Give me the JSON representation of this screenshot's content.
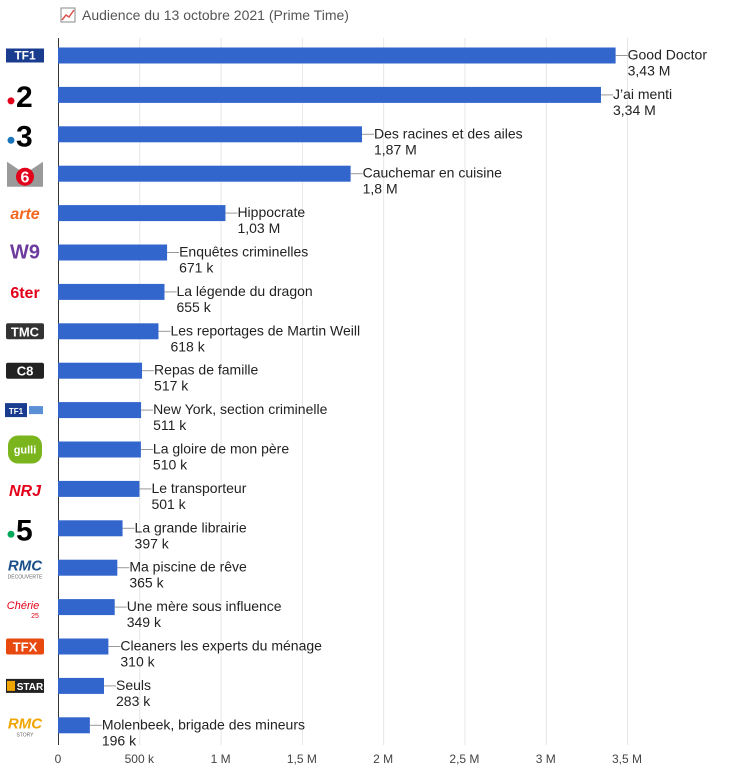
{
  "chart_data": {
    "type": "bar",
    "orientation": "horizontal",
    "title": "Audience du 13 octobre 2021 (Prime Time)",
    "xlim": [
      0,
      3700000
    ],
    "ticks": [
      0,
      500000,
      1000000,
      1500000,
      2000000,
      2500000,
      3000000,
      3500000
    ],
    "tick_labels": [
      "0",
      "500 k",
      "1 M",
      "1,5 M",
      "2 M",
      "2,5 M",
      "3 M",
      "3,5 M"
    ],
    "grid": true,
    "bar_color": "#3366cc",
    "bars": [
      {
        "channel": "TF1",
        "program": "Good Doctor",
        "value": 3430000,
        "label": "3,43 M"
      },
      {
        "channel": "France 2",
        "program": "J’ai menti",
        "value": 3340000,
        "label": "3,34 M"
      },
      {
        "channel": "France 3",
        "program": "Des racines et des ailes",
        "value": 1870000,
        "label": "1,87 M"
      },
      {
        "channel": "M6",
        "program": "Cauchemar en cuisine",
        "value": 1800000,
        "label": "1,8 M"
      },
      {
        "channel": "Arte",
        "program": "Hippocrate",
        "value": 1030000,
        "label": "1,03 M"
      },
      {
        "channel": "W9",
        "program": "Enquêtes criminelles",
        "value": 671000,
        "label": "671 k"
      },
      {
        "channel": "6ter",
        "program": "La légende du dragon",
        "value": 655000,
        "label": "655 k"
      },
      {
        "channel": "TMC",
        "program": "Les reportages de Martin Weill",
        "value": 618000,
        "label": "618 k"
      },
      {
        "channel": "C8",
        "program": "Repas de famille",
        "value": 517000,
        "label": "517 k"
      },
      {
        "channel": "TF1 Séries Films",
        "program": "New York, section criminelle",
        "value": 511000,
        "label": "511 k"
      },
      {
        "channel": "Gulli",
        "program": "La gloire de mon père",
        "value": 510000,
        "label": "510 k"
      },
      {
        "channel": "NRJ 12",
        "program": "Le transporteur",
        "value": 501000,
        "label": "501 k"
      },
      {
        "channel": "France 5",
        "program": "La grande librairie",
        "value": 397000,
        "label": "397 k"
      },
      {
        "channel": "RMC Découverte",
        "program": "Ma piscine de rêve",
        "value": 365000,
        "label": "365 k"
      },
      {
        "channel": "Chérie 25",
        "program": "Une mère sous influence",
        "value": 349000,
        "label": "349 k"
      },
      {
        "channel": "TFX",
        "program": "Cleaners les experts du ménage",
        "value": 310000,
        "label": "310 k"
      },
      {
        "channel": "CStar",
        "program": "Seuls",
        "value": 283000,
        "label": "283 k"
      },
      {
        "channel": "RMC Story",
        "program": "Molenbeek, brigade des mineurs",
        "value": 196000,
        "label": "196 k"
      }
    ]
  },
  "logos": [
    {
      "key": "tf1",
      "text": "TF1",
      "fill": "#1a3c8f",
      "accent": "#e2001a"
    },
    {
      "key": "france2",
      "text": "2",
      "fill": "#000000",
      "accent": "#e2001a"
    },
    {
      "key": "france3",
      "text": "3",
      "fill": "#000000",
      "accent": "#1b75bc"
    },
    {
      "key": "m6",
      "text": "6",
      "fill": "#9a9a9a",
      "accent": "#e2001a"
    },
    {
      "key": "arte",
      "text": "arte",
      "fill": "#f26722",
      "accent": "#f26722"
    },
    {
      "key": "w9",
      "text": "W9",
      "fill": "#6d3b9e",
      "accent": "#6d3b9e"
    },
    {
      "key": "6ter",
      "text": "6ter",
      "fill": "#e2001a",
      "accent": "#e2001a"
    },
    {
      "key": "tmc",
      "text": "TMC",
      "fill": "#333333",
      "accent": "#ffffff"
    },
    {
      "key": "c8",
      "text": "C8",
      "fill": "#222222",
      "accent": "#ffffff"
    },
    {
      "key": "tf1sf",
      "text": "TF1",
      "fill": "#1a3c8f",
      "accent": "#5b8fd6"
    },
    {
      "key": "gulli",
      "text": "gulli",
      "fill": "#7ab51d",
      "accent": "#ffffff"
    },
    {
      "key": "nrj12",
      "text": "NRJ",
      "fill": "#e2001a",
      "accent": "#000000"
    },
    {
      "key": "france5",
      "text": "5",
      "fill": "#000000",
      "accent": "#00a859"
    },
    {
      "key": "rmcdec",
      "text": "RMC",
      "fill": "#1b4f8a",
      "accent": "#1b4f8a",
      "sub": "DÉCOUVERTE"
    },
    {
      "key": "cherie25",
      "text": "Chérie",
      "fill": "#e2001a",
      "accent": "#e2001a",
      "sub": "25"
    },
    {
      "key": "tfx",
      "text": "TFX",
      "fill": "#e8490f",
      "accent": "#ffffff"
    },
    {
      "key": "cstar",
      "text": "STAR",
      "fill": "#222222",
      "accent": "#f0a500"
    },
    {
      "key": "rmcstory",
      "text": "RMC",
      "fill": "#f0a500",
      "accent": "#f0a500",
      "sub": "STORY"
    }
  ]
}
